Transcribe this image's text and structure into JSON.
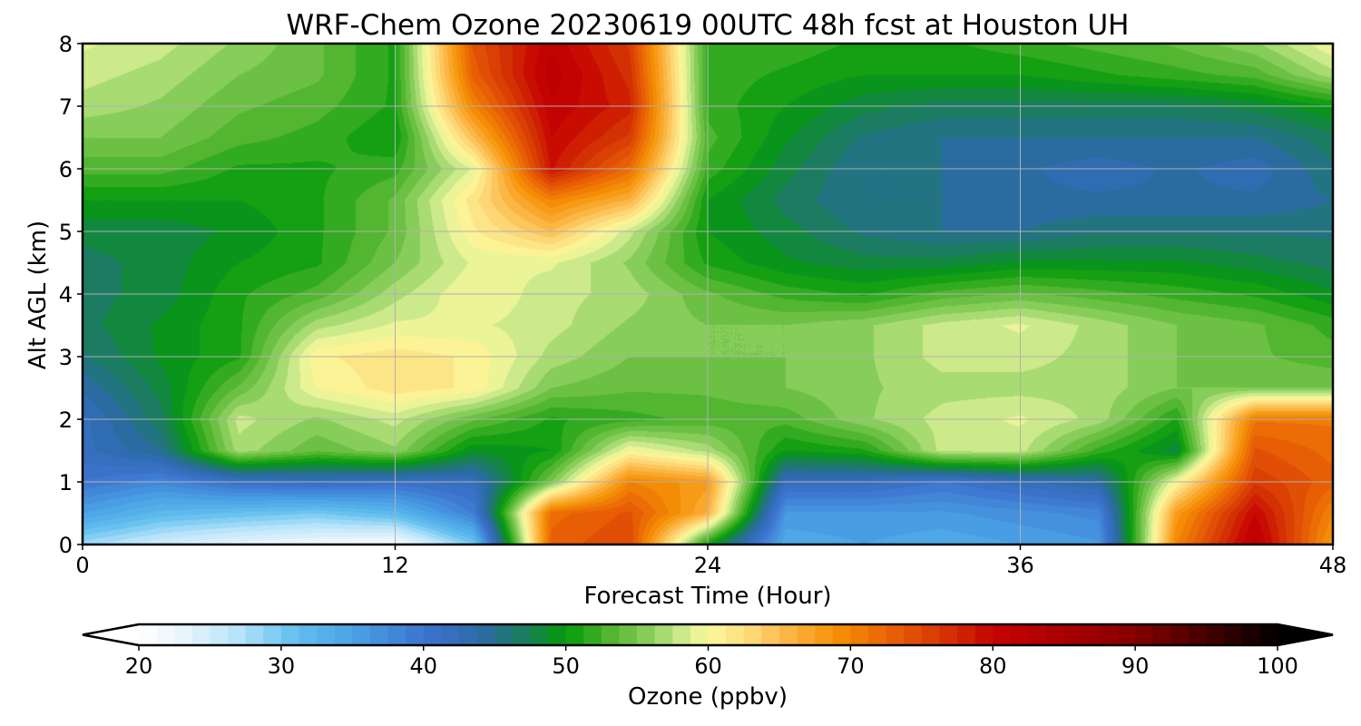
{
  "chart_data": {
    "type": "heatmap",
    "title": "WRF-Chem Ozone  20230619 00UTC 48h fcst at Houston UH",
    "xlabel": "Forecast Time (Hour)",
    "ylabel": "Alt AGL (km)",
    "x_ticks": [
      "0",
      "12",
      "24",
      "36",
      "48"
    ],
    "y_ticks": [
      "0",
      "1",
      "2",
      "3",
      "4",
      "5",
      "6",
      "7",
      "8"
    ],
    "xlim": [
      0,
      48
    ],
    "ylim": [
      0,
      8
    ],
    "grid": true,
    "x": [
      0,
      3,
      6,
      9,
      12,
      15,
      18,
      21,
      24,
      27,
      30,
      33,
      36,
      39,
      42,
      45,
      48
    ],
    "y": [
      0,
      0.5,
      1,
      1.5,
      2,
      2.5,
      3,
      3.5,
      4,
      4.5,
      5,
      5.5,
      6,
      6.5,
      7,
      7.5,
      8
    ],
    "z": [
      [
        28,
        25,
        23,
        22,
        21,
        30,
        73,
        75,
        50,
        34,
        35,
        34,
        35,
        36,
        70,
        82,
        68
      ],
      [
        35,
        32,
        31,
        30,
        32,
        39,
        72,
        74,
        66,
        36,
        36,
        36,
        37,
        38,
        68,
        80,
        70
      ],
      [
        40,
        38,
        41,
        42,
        41,
        42,
        55,
        70,
        68,
        42,
        42,
        40,
        42,
        44,
        60,
        76,
        73
      ],
      [
        42,
        45,
        57,
        54,
        56,
        49,
        50,
        60,
        57,
        50,
        51,
        58,
        58,
        52,
        48,
        74,
        72
      ],
      [
        42,
        47,
        58,
        56,
        58,
        54,
        51,
        52,
        53,
        53,
        56,
        58,
        59,
        57,
        51,
        71,
        71
      ],
      [
        44,
        48,
        54,
        60,
        62,
        61,
        55,
        54,
        54,
        55,
        56,
        57,
        57,
        57,
        55,
        55,
        55
      ],
      [
        46,
        49,
        51,
        61,
        62,
        61,
        57,
        55,
        55,
        55,
        56,
        58,
        58,
        57,
        55,
        54,
        53
      ],
      [
        47,
        49,
        51,
        57,
        59,
        59,
        58,
        56,
        55,
        55,
        56,
        58,
        59,
        57,
        55,
        54,
        52
      ],
      [
        47,
        48,
        51,
        53,
        57,
        60,
        58,
        57,
        54,
        52,
        51,
        53,
        54,
        53,
        52,
        51,
        49
      ],
      [
        47,
        48,
        50,
        51,
        55,
        59,
        59,
        56,
        51,
        49,
        48,
        48,
        49,
        49,
        49,
        48,
        47
      ],
      [
        48,
        48,
        49,
        51,
        54,
        61,
        65,
        58,
        50,
        48,
        46,
        45,
        45,
        46,
        46,
        46,
        46
      ],
      [
        50,
        50,
        50,
        51,
        54,
        62,
        70,
        66,
        50,
        47,
        45,
        45,
        44,
        44,
        44,
        44,
        45
      ],
      [
        53,
        53,
        51,
        51,
        52,
        59,
        79,
        72,
        52,
        48,
        45,
        45,
        44,
        43,
        44,
        43,
        46
      ],
      [
        55,
        55,
        53,
        52,
        50,
        65,
        80,
        76,
        53,
        49,
        46,
        45,
        45,
        45,
        45,
        45,
        47
      ],
      [
        57,
        56,
        54,
        53,
        51,
        70,
        81,
        78,
        52,
        50,
        48,
        47,
        47,
        47,
        47,
        48,
        50
      ],
      [
        58,
        57,
        55,
        54,
        51,
        73,
        82,
        77,
        52,
        51,
        50,
        50,
        50,
        51,
        52,
        53,
        57
      ],
      [
        59,
        58,
        56,
        54,
        51,
        74,
        81,
        76,
        52,
        52,
        51,
        51,
        52,
        53,
        54,
        56,
        60
      ]
    ],
    "colorbar": {
      "label": "Ozone  (ppbv)",
      "ticks": [
        "20",
        "30",
        "40",
        "50",
        "60",
        "70",
        "80",
        "90",
        "100"
      ],
      "min": 20,
      "max": 100,
      "extend": "both",
      "stops": [
        [
          20,
          "#ffffff"
        ],
        [
          23,
          "#eaf6fc"
        ],
        [
          27,
          "#b6e3fa"
        ],
        [
          31,
          "#62bfee"
        ],
        [
          35,
          "#4aa3e6"
        ],
        [
          40,
          "#3d74cf"
        ],
        [
          44,
          "#2c6aa8"
        ],
        [
          47,
          "#1a7d5e"
        ],
        [
          50,
          "#049a0b"
        ],
        [
          53,
          "#4fb52e"
        ],
        [
          56,
          "#8fd060"
        ],
        [
          58,
          "#c9e88a"
        ],
        [
          60,
          "#fbfa9c"
        ],
        [
          63,
          "#fdd878"
        ],
        [
          66,
          "#fbb13d"
        ],
        [
          69,
          "#f59106"
        ],
        [
          73,
          "#e85f05"
        ],
        [
          77,
          "#d23004"
        ],
        [
          80,
          "#c70202"
        ],
        [
          85,
          "#a90000"
        ],
        [
          90,
          "#850000"
        ],
        [
          95,
          "#450000"
        ],
        [
          100,
          "#000000"
        ]
      ]
    }
  }
}
